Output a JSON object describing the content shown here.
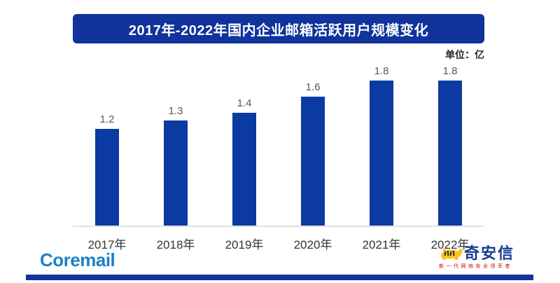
{
  "title": "2017年-2022年国内企业邮箱活跃用户规模变化",
  "unit_label": "单位：亿",
  "chart_data": {
    "type": "bar",
    "title": "2017年-2022年国内企业邮箱活跃用户规模变化",
    "categories": [
      "2017年",
      "2018年",
      "2019年",
      "2020年",
      "2021年",
      "2022年"
    ],
    "values": [
      1.2,
      1.3,
      1.4,
      1.6,
      1.8,
      1.8
    ],
    "unit": "亿",
    "xlabel": "",
    "ylabel": "",
    "ylim": [
      0,
      2.0
    ],
    "grid": false,
    "legend": false,
    "data_labels": true,
    "bar_color": "#0B3AA2",
    "axis_line_color": "#E3E3E3",
    "value_label_color": "#595959",
    "category_label_color": "#333333"
  },
  "footer": {
    "left_logo_text": "Coremail",
    "right_logo_text": "奇安信",
    "right_logo_tagline": "新一代网络安全领军者"
  },
  "colors": {
    "banner_bg": "#10339C",
    "banner_text": "#FFFFFF",
    "bottom_bar": "#10339C",
    "coremail_blue": "#1E80C6",
    "qianxin_navy": "#1A3B8F",
    "qianxin_red": "#D7000F",
    "tiger_yellow": "#F7C51E"
  }
}
